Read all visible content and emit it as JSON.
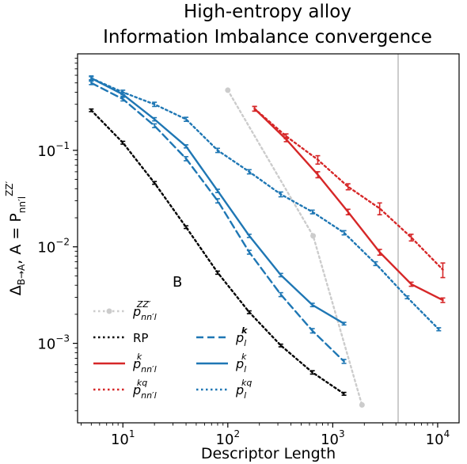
{
  "title_line1": "High-entropy alloy",
  "title_line2": "Information Imbalance convergence",
  "xlabel": "Descriptor Length",
  "ylabel_main": "Δ",
  "ylabel_sub": "B→A",
  "ylabel_rest": ",  A = P",
  "ylabel_rsub": "nn′l",
  "ylabel_rsup": "ZZ′",
  "panel_marker": "B",
  "x_ticks": [
    {
      "base": "10",
      "exp": "1",
      "v": 10
    },
    {
      "base": "10",
      "exp": "2",
      "v": 100
    },
    {
      "base": "10",
      "exp": "3",
      "v": 1000
    },
    {
      "base": "10",
      "exp": "4",
      "v": 10000
    }
  ],
  "y_ticks": [
    {
      "base": "10",
      "exp": "−1",
      "v": 0.1
    },
    {
      "base": "10",
      "exp": "−2",
      "v": 0.01
    },
    {
      "base": "10",
      "exp": "−3",
      "v": 0.001
    }
  ],
  "legend": [
    {
      "main": "p",
      "sub": "nn′l",
      "sup": "ZZ′",
      "plain": ""
    },
    {
      "main": "",
      "sub": "",
      "sup": "",
      "plain": "RP"
    },
    {
      "main": "p",
      "sub": "nn′l",
      "sup": "k",
      "plain": ""
    },
    {
      "main": "p",
      "sub": "nn′l",
      "sup": "kq",
      "plain": ""
    },
    {
      "main": "p",
      "sub": "l",
      "sup": "k",
      "plain": ""
    },
    {
      "main": "p",
      "sub": "l",
      "sup": "k",
      "plain": ""
    },
    {
      "main": "p",
      "sub": "l",
      "sup": "kq",
      "plain": ""
    }
  ],
  "chart_data": {
    "type": "line",
    "title": "High-entropy alloy\nInformation Imbalance convergence",
    "xlabel": "Descriptor Length",
    "ylabel": "Δ_B→A,  A = P_nn'l^ZZ'",
    "xscale": "log",
    "yscale": "log",
    "xlim": [
      3.7,
      16000
    ],
    "ylim": [
      0.00015,
      1.0
    ],
    "vline": {
      "x": 4200,
      "color": "#cccccc"
    },
    "series": [
      {
        "name": "p_nn'l^ZZ'",
        "color": "#cccccc",
        "style": "dotted",
        "marker": "circle",
        "x": [
          100,
          650,
          1900
        ],
        "y": [
          0.42,
          0.013,
          0.00023
        ],
        "err": [
          0,
          0,
          0
        ]
      },
      {
        "name": "RP",
        "color": "#000000",
        "style": "dotted",
        "x": [
          5,
          10,
          20,
          40,
          80,
          160,
          320,
          640,
          1280
        ],
        "y": [
          0.26,
          0.12,
          0.046,
          0.016,
          0.0054,
          0.0021,
          0.00095,
          0.0005,
          0.0003
        ],
        "err": [
          0.008,
          0.004,
          0.0015,
          0.0005,
          0.0002,
          7e-05,
          3e-05,
          2e-05,
          1e-05
        ]
      },
      {
        "name": "p_nn'l^k",
        "color": "#d62728",
        "style": "solid",
        "x": [
          180,
          360,
          720,
          1400,
          2800,
          5600,
          11200
        ],
        "y": [
          0.27,
          0.13,
          0.056,
          0.023,
          0.0088,
          0.0041,
          0.0028
        ],
        "err": [
          0.015,
          0.007,
          0.004,
          0.0015,
          0.0006,
          0.0002,
          0.00015
        ]
      },
      {
        "name": "p_nn'l^kq",
        "color": "#d62728",
        "style": "dotted",
        "x": [
          180,
          360,
          720,
          1400,
          2800,
          5600,
          11200
        ],
        "y": [
          0.27,
          0.14,
          0.08,
          0.042,
          0.025,
          0.0125,
          0.0058
        ],
        "err": [
          0.015,
          0.008,
          0.008,
          0.003,
          0.0035,
          0.001,
          0.001
        ]
      },
      {
        "name": "p_l^k (bold)",
        "color": "#1f77b4",
        "style": "dashed",
        "x": [
          5,
          10,
          20,
          40,
          80,
          160,
          320,
          640,
          1280
        ],
        "y": [
          0.5,
          0.34,
          0.18,
          0.082,
          0.03,
          0.0088,
          0.0032,
          0.00135,
          0.00065
        ],
        "err": [
          0.02,
          0.015,
          0.008,
          0.004,
          0.0015,
          0.0004,
          0.00015,
          7e-05,
          3e-05
        ]
      },
      {
        "name": "p_l^k",
        "color": "#1f77b4",
        "style": "solid",
        "x": [
          5,
          10,
          20,
          40,
          80,
          160,
          320,
          640,
          1280
        ],
        "y": [
          0.56,
          0.38,
          0.21,
          0.11,
          0.038,
          0.013,
          0.0051,
          0.0025,
          0.0016
        ],
        "err": [
          0.02,
          0.015,
          0.008,
          0.004,
          0.0015,
          0.0005,
          0.0002,
          0.0001,
          5e-05
        ]
      },
      {
        "name": "p_l^kq",
        "color": "#1f77b4",
        "style": "dotted",
        "x": [
          5,
          10,
          20,
          40,
          80,
          160,
          320,
          640,
          1280,
          2560,
          5120,
          10240
        ],
        "y": [
          0.56,
          0.4,
          0.3,
          0.21,
          0.1,
          0.06,
          0.035,
          0.023,
          0.014,
          0.0067,
          0.003,
          0.0014
        ],
        "err": [
          0.03,
          0.02,
          0.015,
          0.01,
          0.005,
          0.003,
          0.002,
          0.001,
          0.0007,
          0.0003,
          0.0001,
          5e-05
        ]
      }
    ]
  }
}
